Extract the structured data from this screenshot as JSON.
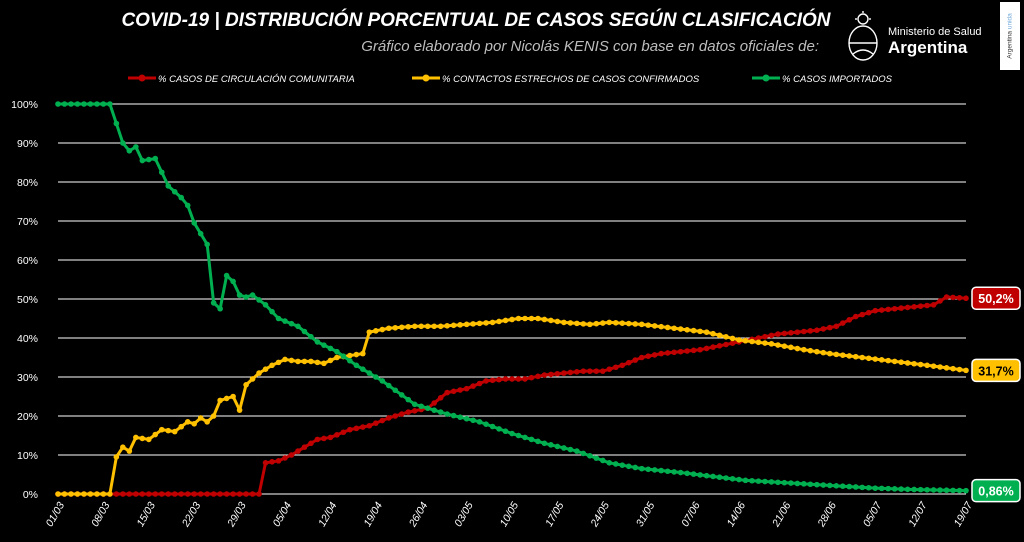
{
  "header": {
    "title": "COVID-19  |  DISTRIBUCIÓN PORCENTUAL DE CASOS SEGÚN CLASIFICACIÓN",
    "subtitle": "Gráfico elaborado por Nicolás KENIS con base en datos oficiales de:",
    "ministry_line1": "Ministerio de Salud",
    "ministry_line2": "Argentina",
    "badge_text": "Argentina",
    "badge_text_accent": "unida"
  },
  "chart_data": {
    "type": "line",
    "title": "COVID-19  |  DISTRIBUCIÓN PORCENTUAL DE CASOS SEGÚN CLASIFICACIÓN",
    "xlabel": "",
    "ylabel": "",
    "ylim": [
      0,
      100
    ],
    "yticks": [
      "0%",
      "10%",
      "20%",
      "30%",
      "40%",
      "50%",
      "60%",
      "70%",
      "80%",
      "90%",
      "100%"
    ],
    "x_start": "01/03",
    "x_end": "19/07",
    "xticks": [
      "01/03",
      "08/03",
      "15/03",
      "22/03",
      "29/03",
      "05/04",
      "12/04",
      "19/04",
      "26/04",
      "03/05",
      "10/05",
      "17/05",
      "24/05",
      "31/05",
      "07/06",
      "14/06",
      "21/06",
      "28/06",
      "05/07",
      "12/07",
      "19/07"
    ],
    "grid": true,
    "legend_position": "top",
    "series": [
      {
        "name": "% CASOS DE CIRCULACIÓN COMUNITARIA",
        "color": "#c00000",
        "end_label": "50,2%",
        "points": [
          [
            "01/03",
            0
          ],
          [
            "10/03",
            0
          ],
          [
            "20/03",
            0
          ],
          [
            "30/03",
            0
          ],
          [
            "01/04",
            0
          ],
          [
            "02/04",
            8
          ],
          [
            "04/04",
            8.5
          ],
          [
            "06/04",
            10
          ],
          [
            "08/04",
            12
          ],
          [
            "10/04",
            14
          ],
          [
            "12/04",
            14.5
          ],
          [
            "15/04",
            16.5
          ],
          [
            "18/04",
            17.5
          ],
          [
            "21/04",
            19.5
          ],
          [
            "24/04",
            21
          ],
          [
            "27/04",
            22
          ],
          [
            "30/04",
            26
          ],
          [
            "03/05",
            27
          ],
          [
            "06/05",
            29
          ],
          [
            "09/05",
            29.5
          ],
          [
            "12/05",
            29.5
          ],
          [
            "15/05",
            30.5
          ],
          [
            "18/05",
            31
          ],
          [
            "21/05",
            31.5
          ],
          [
            "24/05",
            31.5
          ],
          [
            "27/05",
            33
          ],
          [
            "30/05",
            35
          ],
          [
            "02/06",
            36
          ],
          [
            "05/06",
            36.5
          ],
          [
            "08/06",
            37
          ],
          [
            "11/06",
            38
          ],
          [
            "14/06",
            39
          ],
          [
            "17/06",
            40
          ],
          [
            "20/06",
            41
          ],
          [
            "23/06",
            41.5
          ],
          [
            "26/06",
            42
          ],
          [
            "29/06",
            43
          ],
          [
            "02/07",
            45.5
          ],
          [
            "05/07",
            47
          ],
          [
            "08/07",
            47.5
          ],
          [
            "11/07",
            48
          ],
          [
            "14/07",
            48.5
          ],
          [
            "16/07",
            50.5
          ],
          [
            "19/07",
            50.2
          ]
        ]
      },
      {
        "name": "% CONTACTOS ESTRECHOS DE CASOS CONFIRMADOS",
        "color": "#ffc000",
        "end_label": "31,7%",
        "points": [
          [
            "01/03",
            0
          ],
          [
            "09/03",
            0
          ],
          [
            "10/03",
            9.5
          ],
          [
            "11/03",
            12
          ],
          [
            "12/03",
            11
          ],
          [
            "13/03",
            14.5
          ],
          [
            "15/03",
            14
          ],
          [
            "17/03",
            16.5
          ],
          [
            "19/03",
            16
          ],
          [
            "21/03",
            18.5
          ],
          [
            "22/03",
            18
          ],
          [
            "23/03",
            19.5
          ],
          [
            "24/03",
            18.5
          ],
          [
            "25/03",
            20
          ],
          [
            "26/03",
            24
          ],
          [
            "28/03",
            25
          ],
          [
            "29/03",
            21.5
          ],
          [
            "30/03",
            28
          ],
          [
            "01/04",
            31
          ],
          [
            "03/04",
            33
          ],
          [
            "05/04",
            34.5
          ],
          [
            "07/04",
            34
          ],
          [
            "09/04",
            34
          ],
          [
            "11/04",
            33.5
          ],
          [
            "13/04",
            35
          ],
          [
            "15/04",
            35.5
          ],
          [
            "17/04",
            36
          ],
          [
            "18/04",
            41.5
          ],
          [
            "21/04",
            42.5
          ],
          [
            "25/04",
            43
          ],
          [
            "29/04",
            43
          ],
          [
            "03/05",
            43.5
          ],
          [
            "07/05",
            44
          ],
          [
            "11/05",
            45
          ],
          [
            "14/05",
            45
          ],
          [
            "18/05",
            44
          ],
          [
            "22/05",
            43.5
          ],
          [
            "25/05",
            44
          ],
          [
            "30/05",
            43.5
          ],
          [
            "04/06",
            42.5
          ],
          [
            "09/06",
            41.5
          ],
          [
            "14/06",
            39.5
          ],
          [
            "19/06",
            38.5
          ],
          [
            "24/06",
            37
          ],
          [
            "28/06",
            36
          ],
          [
            "03/07",
            35
          ],
          [
            "08/07",
            34
          ],
          [
            "13/07",
            33
          ],
          [
            "19/07",
            31.7
          ]
        ]
      },
      {
        "name": "% CASOS IMPORTADOS",
        "color": "#00b050",
        "end_label": "0,86%",
        "points": [
          [
            "01/03",
            100
          ],
          [
            "05/03",
            100
          ],
          [
            "09/03",
            100
          ],
          [
            "11/03",
            90
          ],
          [
            "12/03",
            88
          ],
          [
            "13/03",
            89
          ],
          [
            "14/03",
            85.5
          ],
          [
            "16/03",
            86
          ],
          [
            "18/03",
            79
          ],
          [
            "20/03",
            76
          ],
          [
            "21/03",
            74
          ],
          [
            "22/03",
            69.5
          ],
          [
            "24/03",
            64
          ],
          [
            "25/03",
            49
          ],
          [
            "26/03",
            47.5
          ],
          [
            "27/03",
            56
          ],
          [
            "28/03",
            54.5
          ],
          [
            "29/03",
            51
          ],
          [
            "30/03",
            50.5
          ],
          [
            "31/03",
            51
          ],
          [
            "02/04",
            48.5
          ],
          [
            "04/04",
            45
          ],
          [
            "07/04",
            43
          ],
          [
            "10/04",
            39
          ],
          [
            "13/04",
            36.5
          ],
          [
            "16/04",
            33
          ],
          [
            "20/04",
            29
          ],
          [
            "25/04",
            23
          ],
          [
            "30/04",
            20.5
          ],
          [
            "05/05",
            18.5
          ],
          [
            "10/05",
            15.5
          ],
          [
            "15/05",
            13
          ],
          [
            "20/05",
            11
          ],
          [
            "25/05",
            8
          ],
          [
            "30/05",
            6.5
          ],
          [
            "05/06",
            5.5
          ],
          [
            "10/06",
            4.5
          ],
          [
            "15/06",
            3.5
          ],
          [
            "20/06",
            3
          ],
          [
            "25/06",
            2.5
          ],
          [
            "30/06",
            2
          ],
          [
            "05/07",
            1.5
          ],
          [
            "10/07",
            1.2
          ],
          [
            "15/07",
            1
          ],
          [
            "19/07",
            0.86
          ]
        ]
      }
    ]
  }
}
